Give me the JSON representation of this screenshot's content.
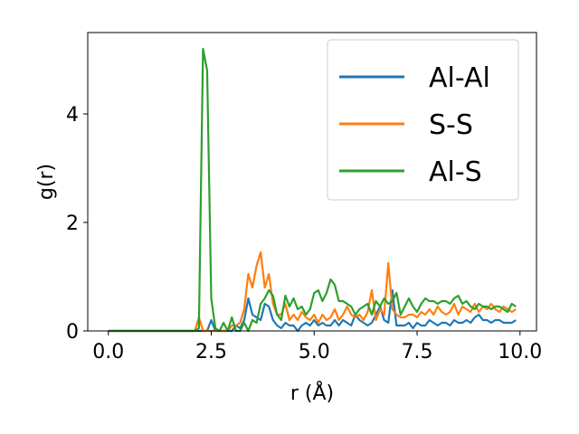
{
  "chart_data": {
    "type": "line",
    "title": "",
    "xlabel": "r (Å)",
    "ylabel": "g(r)",
    "xlim": [
      -0.5,
      10.4
    ],
    "ylim": [
      0,
      5.5
    ],
    "xticks": [
      0.0,
      2.5,
      5.0,
      7.5,
      10.0
    ],
    "xtick_labels": [
      "0.0",
      "2.5",
      "5.0",
      "7.5",
      "10.0"
    ],
    "yticks": [
      0,
      2,
      4
    ],
    "ytick_labels": [
      "0",
      "2",
      "4"
    ],
    "grid": false,
    "legend": "top-right",
    "series": [
      {
        "name": "Al-Al",
        "color": "#1f77b4",
        "x": [
          0.0,
          2.0,
          2.1,
          2.2,
          2.3,
          2.4,
          2.5,
          2.6,
          2.7,
          2.8,
          2.9,
          3.0,
          3.1,
          3.2,
          3.3,
          3.4,
          3.5,
          3.6,
          3.7,
          3.8,
          3.9,
          4.0,
          4.1,
          4.2,
          4.3,
          4.4,
          4.5,
          4.6,
          4.7,
          4.8,
          4.9,
          5.0,
          5.1,
          5.2,
          5.3,
          5.4,
          5.5,
          5.6,
          5.7,
          5.8,
          5.9,
          6.0,
          6.1,
          6.2,
          6.3,
          6.4,
          6.5,
          6.6,
          6.7,
          6.8,
          6.9,
          7.0,
          7.1,
          7.2,
          7.3,
          7.4,
          7.5,
          7.6,
          7.7,
          7.8,
          7.9,
          8.0,
          8.1,
          8.2,
          8.3,
          8.4,
          8.5,
          8.6,
          8.7,
          8.8,
          8.9,
          9.0,
          9.1,
          9.2,
          9.3,
          9.4,
          9.5,
          9.6,
          9.7,
          9.8,
          9.9
        ],
        "y": [
          0.0,
          0.0,
          0.0,
          0.0,
          0.0,
          0.0,
          0.2,
          0.0,
          0.0,
          0.0,
          0.0,
          0.0,
          0.1,
          0.05,
          0.2,
          0.6,
          0.3,
          0.25,
          0.2,
          0.5,
          0.45,
          0.2,
          0.1,
          0.05,
          0.15,
          0.1,
          0.1,
          0.0,
          0.1,
          0.15,
          0.1,
          0.2,
          0.1,
          0.15,
          0.1,
          0.1,
          0.2,
          0.1,
          0.2,
          0.15,
          0.1,
          0.3,
          0.2,
          0.15,
          0.1,
          0.15,
          0.3,
          0.45,
          0.2,
          0.15,
          0.75,
          0.1,
          0.1,
          0.1,
          0.15,
          0.05,
          0.15,
          0.1,
          0.1,
          0.2,
          0.15,
          0.1,
          0.15,
          0.15,
          0.1,
          0.2,
          0.15,
          0.15,
          0.2,
          0.15,
          0.25,
          0.3,
          0.2,
          0.2,
          0.15,
          0.2,
          0.2,
          0.15,
          0.15,
          0.15,
          0.2
        ]
      },
      {
        "name": "S-S",
        "color": "#ff7f0e",
        "x": [
          0.0,
          2.0,
          2.1,
          2.2,
          2.3,
          2.4,
          2.5,
          2.6,
          2.7,
          2.8,
          2.9,
          3.0,
          3.1,
          3.2,
          3.3,
          3.4,
          3.5,
          3.6,
          3.7,
          3.8,
          3.9,
          4.0,
          4.1,
          4.2,
          4.3,
          4.4,
          4.5,
          4.6,
          4.7,
          4.8,
          4.9,
          5.0,
          5.1,
          5.2,
          5.3,
          5.4,
          5.5,
          5.6,
          5.7,
          5.8,
          5.9,
          6.0,
          6.1,
          6.2,
          6.3,
          6.4,
          6.5,
          6.6,
          6.7,
          6.8,
          6.9,
          7.0,
          7.1,
          7.2,
          7.3,
          7.4,
          7.5,
          7.6,
          7.7,
          7.8,
          7.9,
          8.0,
          8.1,
          8.2,
          8.3,
          8.4,
          8.5,
          8.6,
          8.7,
          8.8,
          8.9,
          9.0,
          9.1,
          9.2,
          9.3,
          9.4,
          9.5,
          9.6,
          9.7,
          9.8,
          9.9
        ],
        "y": [
          0.0,
          0.0,
          0.0,
          0.25,
          0.0,
          0.0,
          0.0,
          0.0,
          0.0,
          0.0,
          0.0,
          0.1,
          0.1,
          0.15,
          0.4,
          1.05,
          0.8,
          1.2,
          1.45,
          0.8,
          1.05,
          0.5,
          0.3,
          0.3,
          0.5,
          0.2,
          0.3,
          0.2,
          0.35,
          0.25,
          0.2,
          0.3,
          0.15,
          0.3,
          0.2,
          0.25,
          0.4,
          0.2,
          0.3,
          0.45,
          0.3,
          0.25,
          0.3,
          0.2,
          0.35,
          0.75,
          0.2,
          0.4,
          0.3,
          1.25,
          0.4,
          0.3,
          0.25,
          0.25,
          0.3,
          0.3,
          0.25,
          0.35,
          0.3,
          0.4,
          0.3,
          0.45,
          0.35,
          0.3,
          0.35,
          0.5,
          0.3,
          0.45,
          0.4,
          0.35,
          0.5,
          0.35,
          0.45,
          0.4,
          0.5,
          0.4,
          0.35,
          0.45,
          0.4,
          0.35,
          0.4
        ]
      },
      {
        "name": "Al-S",
        "color": "#2ca02c",
        "x": [
          0.0,
          1.9,
          2.0,
          2.1,
          2.2,
          2.3,
          2.4,
          2.5,
          2.6,
          2.7,
          2.8,
          2.9,
          3.0,
          3.1,
          3.2,
          3.3,
          3.4,
          3.5,
          3.6,
          3.7,
          3.8,
          3.9,
          4.0,
          4.1,
          4.2,
          4.3,
          4.4,
          4.5,
          4.6,
          4.7,
          4.8,
          4.9,
          5.0,
          5.1,
          5.2,
          5.3,
          5.4,
          5.5,
          5.6,
          5.7,
          5.8,
          5.9,
          6.0,
          6.1,
          6.2,
          6.3,
          6.4,
          6.5,
          6.6,
          6.7,
          6.8,
          6.9,
          7.0,
          7.1,
          7.2,
          7.3,
          7.4,
          7.5,
          7.6,
          7.7,
          7.8,
          7.9,
          8.0,
          8.1,
          8.2,
          8.3,
          8.4,
          8.5,
          8.6,
          8.7,
          8.8,
          8.9,
          9.0,
          9.1,
          9.2,
          9.3,
          9.4,
          9.5,
          9.6,
          9.7,
          9.8,
          9.9
        ],
        "y": [
          0.0,
          0.0,
          0.0,
          0.0,
          0.05,
          5.2,
          4.8,
          0.6,
          0.05,
          0.0,
          0.15,
          0.0,
          0.25,
          0.0,
          0.0,
          0.15,
          0.0,
          0.2,
          0.15,
          0.5,
          0.6,
          0.75,
          0.65,
          0.3,
          0.2,
          0.65,
          0.45,
          0.6,
          0.4,
          0.45,
          0.3,
          0.4,
          0.7,
          0.75,
          0.55,
          0.7,
          0.95,
          0.85,
          0.55,
          0.55,
          0.5,
          0.45,
          0.3,
          0.4,
          0.45,
          0.5,
          0.3,
          0.55,
          0.45,
          0.6,
          0.5,
          0.55,
          0.7,
          0.3,
          0.45,
          0.6,
          0.45,
          0.35,
          0.5,
          0.6,
          0.55,
          0.55,
          0.5,
          0.55,
          0.55,
          0.5,
          0.6,
          0.65,
          0.5,
          0.55,
          0.45,
          0.4,
          0.5,
          0.45,
          0.45,
          0.4,
          0.45,
          0.45,
          0.4,
          0.35,
          0.5,
          0.45
        ]
      }
    ]
  }
}
